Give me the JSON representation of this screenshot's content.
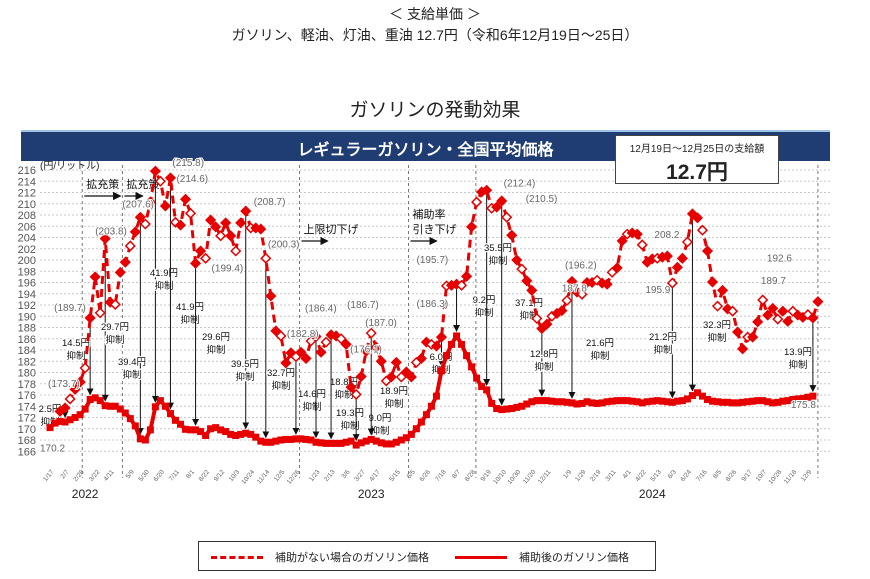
{
  "header": {
    "subtitle": "＜ 支給単価 ＞",
    "rate_line": "ガソリン、軽油、灯油、重油 12.7円（令和6年12月19日～25日）",
    "section_title": "ガソリンの発動効果"
  },
  "chart_data": {
    "type": "line",
    "title": "レギュラーガソリン・全国平均価格",
    "ylabel": "(円/リットル)",
    "ylim": [
      166,
      216
    ],
    "yticks": [
      166,
      168,
      170,
      172,
      174,
      176,
      178,
      180,
      182,
      184,
      186,
      188,
      190,
      192,
      194,
      196,
      198,
      200,
      202,
      204,
      206,
      208,
      210,
      212,
      214,
      216
    ],
    "grid": true,
    "legend_placement": "bottom",
    "colors": {
      "series": "#e60000",
      "banner": "#1f3d73",
      "grid": "#c8c8c8"
    },
    "payment_box": {
      "label": "12月19日～12月25日の支給額",
      "value": "12.7円"
    },
    "xtick_labels": [
      {
        "date": "2022-01-17",
        "label": "1/17"
      },
      {
        "date": "2022-02-07",
        "label": "2/7"
      },
      {
        "date": "2022-02-28",
        "label": "2/28"
      },
      {
        "date": "2022-03-22",
        "label": "3/22"
      },
      {
        "date": "2022-04-11",
        "label": "4/11"
      },
      {
        "date": "2022-05-09",
        "label": "5/9"
      },
      {
        "date": "2022-05-30",
        "label": "5/30"
      },
      {
        "date": "2022-06-20",
        "label": "6/20"
      },
      {
        "date": "2022-07-11",
        "label": "7/11"
      },
      {
        "date": "2022-08-01",
        "label": "8/1"
      },
      {
        "date": "2022-08-22",
        "label": "8/22"
      },
      {
        "date": "2022-09-12",
        "label": "9/12"
      },
      {
        "date": "2022-10-03",
        "label": "10/3"
      },
      {
        "date": "2022-10-24",
        "label": "10/24"
      },
      {
        "date": "2022-11-14",
        "label": "11/14"
      },
      {
        "date": "2022-12-05",
        "label": "12/5"
      },
      {
        "date": "2022-12-26",
        "label": "12/26"
      },
      {
        "date": "2023-01-23",
        "label": "1/23"
      },
      {
        "date": "2023-02-13",
        "label": "2/13"
      },
      {
        "date": "2023-03-06",
        "label": "3/6"
      },
      {
        "date": "2023-03-27",
        "label": "3/27"
      },
      {
        "date": "2023-04-17",
        "label": "4/17"
      },
      {
        "date": "2023-05-15",
        "label": "5/15"
      },
      {
        "date": "2023-06-05",
        "label": "6/5"
      },
      {
        "date": "2023-06-26",
        "label": "6/26"
      },
      {
        "date": "2023-07-18",
        "label": "7/18"
      },
      {
        "date": "2023-08-07",
        "label": "8/7"
      },
      {
        "date": "2023-08-28",
        "label": "8/28"
      },
      {
        "date": "2023-09-19",
        "label": "9/19"
      },
      {
        "date": "2023-10-10",
        "label": "10/10"
      },
      {
        "date": "2023-10-30",
        "label": "10/30"
      },
      {
        "date": "2023-11-20",
        "label": "11/20"
      },
      {
        "date": "2023-12-11",
        "label": "12/11"
      },
      {
        "date": "2024-01-09",
        "label": "1/9"
      },
      {
        "date": "2024-01-29",
        "label": "1/29"
      },
      {
        "date": "2024-02-19",
        "label": "2/19"
      },
      {
        "date": "2024-03-11",
        "label": "3/11"
      },
      {
        "date": "2024-04-01",
        "label": "4/1"
      },
      {
        "date": "2024-04-22",
        "label": "4/22"
      },
      {
        "date": "2024-05-13",
        "label": "5/13"
      },
      {
        "date": "2024-06-03",
        "label": "6/3"
      },
      {
        "date": "2024-06-24",
        "label": "6/24"
      },
      {
        "date": "2024-07-16",
        "label": "7/16"
      },
      {
        "date": "2024-08-05",
        "label": "8/5"
      },
      {
        "date": "2024-08-26",
        "label": "8/26"
      },
      {
        "date": "2024-09-17",
        "label": "9/17"
      },
      {
        "date": "2024-10-07",
        "label": "10/7"
      },
      {
        "date": "2024-10-28",
        "label": "10/28"
      },
      {
        "date": "2024-11-18",
        "label": "11/18"
      },
      {
        "date": "2024-12-09",
        "label": "12/9"
      }
    ],
    "year_labels": [
      {
        "date": "2022-03-07",
        "label": "2022"
      },
      {
        "date": "2023-04-10",
        "label": "2023"
      },
      {
        "date": "2024-05-06",
        "label": "2024"
      }
    ],
    "reference_lines": [
      "2022-03-03",
      "2022-04-28",
      "2022-12-31",
      "2023-06-01",
      "2023-09-03",
      "2024-12-23"
    ],
    "policy_annotations": [
      {
        "lines": [
          "拡充策"
        ],
        "from": "2022-03-03",
        "to": "2022-04-25"
      },
      {
        "lines": [
          "拡充策"
        ],
        "from": "2022-04-28",
        "to": "2022-05-26"
      },
      {
        "lines": [
          "上限切下げ"
        ],
        "from": "2022-12-31",
        "to": "2023-02-08"
      },
      {
        "lines": [
          "補助率",
          "引き下げ"
        ],
        "from": "2023-06-01",
        "to": "2023-07-10"
      }
    ],
    "x_start": "2022-01-17",
    "x_step": "weekly",
    "series": [
      {
        "name": "補助がない場合のガソリン価格",
        "style": "dashed",
        "values": [
          null,
          null,
          173.1,
          173.7,
          175.3,
          177.0,
          178.3,
          180.8,
          189.7,
          197.0,
          190.6,
          203.8,
          192.5,
          192.1,
          197.8,
          199.6,
          202.5,
          205.0,
          207.6,
          206.4,
          210.3,
          215.8,
          214.0,
          209.6,
          214.6,
          206.7,
          206.2,
          210.8,
          208.3,
          199.4,
          201.6,
          200.3,
          207.1,
          205.9,
          204.3,
          206.6,
          204.3,
          201.6,
          206.6,
          208.7,
          205.7,
          205.7,
          205.5,
          200.3,
          193.6,
          187.4,
          186.5,
          181.7,
          183.5,
          182.8,
          183.6,
          182.5,
          185.6,
          186.4,
          183.6,
          185.4,
          186.7,
          186.5,
          186.0,
          185.0,
          177.4,
          176.1,
          179.3,
          183.8,
          187.0,
          184.5,
          182.0,
          178.5,
          179.2,
          181.8,
          179.2,
          180.1,
          179.2,
          181.8,
          182.5,
          185.4,
          185.0,
          184.7,
          186.3,
          195.4,
          195.5,
          195.7,
          195.5,
          197.1,
          205.9,
          210.3,
          212.1,
          212.4,
          209.2,
          209.4,
          210.5,
          207.6,
          204.4,
          200.0,
          198.4,
          196.3,
          194.6,
          189.6,
          187.8,
          188.6,
          190.0,
          190.5,
          191.0,
          192.8,
          196.2,
          194.3,
          193.9,
          196.0,
          196.0,
          196.4,
          195.9,
          195.7,
          197.8,
          198.6,
          203.4,
          204.6,
          204.8,
          204.6,
          202.7,
          199.6,
          200.2,
          200.3,
          200.5,
          200.7,
          195.9,
          198.7,
          200.3,
          203.2,
          208.2,
          207.5,
          205.3,
          201.6,
          196.1,
          191.8,
          194.6,
          191.3,
          190.9,
          187.2,
          184.2,
          186.3,
          186.3,
          189.0,
          192.9,
          190.2,
          191.4,
          189.5,
          190.9,
          189.1,
          190.9,
          190.2,
          189.8,
          190.3,
          189.7,
          192.6
        ]
      },
      {
        "name": "補助後のガソリン価格",
        "style": "solid",
        "values": [
          170.2,
          171.0,
          171.3,
          171.2,
          171.6,
          172.0,
          172.5,
          173.5,
          175.2,
          175.5,
          175.0,
          174.1,
          174.0,
          174.0,
          173.5,
          172.8,
          171.8,
          170.5,
          168.2,
          168.0,
          169.8,
          173.9,
          175.0,
          174.0,
          172.7,
          171.5,
          170.8,
          169.9,
          169.8,
          169.8,
          169.5,
          168.8,
          170.0,
          170.2,
          169.8,
          169.5,
          169.0,
          168.8,
          169.0,
          169.2,
          169.0,
          168.5,
          167.8,
          167.6,
          167.6,
          167.8,
          168.0,
          168.1,
          168.1,
          168.2,
          168.2,
          168.1,
          168.0,
          167.6,
          167.5,
          167.4,
          167.4,
          167.4,
          167.4,
          167.6,
          167.8,
          167.1,
          167.5,
          167.8,
          168.1,
          167.8,
          167.5,
          167.3,
          167.3,
          167.6,
          168.0,
          168.4,
          169.0,
          170.0,
          171.2,
          172.5,
          174.0,
          175.8,
          180.3,
          183.0,
          185.0,
          186.5,
          185.0,
          183.0,
          181.0,
          179.0,
          177.5,
          176.9,
          174.5,
          173.6,
          173.4,
          173.5,
          173.6,
          173.8,
          174.0,
          174.4,
          174.8,
          175.0,
          175.0,
          175.0,
          174.9,
          174.8,
          174.8,
          174.7,
          174.6,
          174.4,
          174.5,
          174.8,
          174.6,
          174.5,
          174.6,
          174.8,
          174.9,
          175.0,
          175.0,
          175.0,
          174.9,
          174.8,
          174.6,
          174.8,
          174.9,
          175.0,
          174.9,
          174.8,
          174.7,
          174.9,
          175.0,
          175.3,
          175.9,
          176.4,
          175.8,
          175.2,
          174.9,
          174.8,
          174.7,
          174.7,
          174.6,
          174.6,
          174.7,
          174.8,
          174.9,
          175.0,
          175.0,
          174.8,
          174.6,
          174.7,
          174.9,
          175.0,
          175.2,
          175.3,
          175.4,
          175.6,
          175.8,
          null
        ]
      }
    ],
    "value_labels": [
      {
        "week": 3,
        "series": 0,
        "text": "(173.7)"
      },
      {
        "week": 8,
        "series": 0,
        "text": "(189.7)"
      },
      {
        "week": 11,
        "series": 0,
        "text": "(203.8)"
      },
      {
        "week": 18,
        "series": 0,
        "text": "(207.6)"
      },
      {
        "week": 21,
        "series": 0,
        "text": "(215.8)"
      },
      {
        "week": 24,
        "series": 0,
        "text": "(214.6)"
      },
      {
        "week": 29,
        "series": 0,
        "text": "(199.4)"
      },
      {
        "week": 39,
        "series": 0,
        "text": "(208.7)"
      },
      {
        "week": 43,
        "series": 0,
        "text": "(200.3)"
      },
      {
        "week": 49,
        "series": 0,
        "text": "(182.8)"
      },
      {
        "week": 53,
        "series": 0,
        "text": "(186.4)"
      },
      {
        "week": 56,
        "series": 0,
        "text": "(186.7)"
      },
      {
        "week": 61,
        "series": 0,
        "text": "(176.1)"
      },
      {
        "week": 64,
        "series": 0,
        "text": "(187.0)"
      },
      {
        "week": 78,
        "series": 0,
        "text": "(186.3)"
      },
      {
        "week": 81,
        "series": 0,
        "text": "(195.7)"
      },
      {
        "week": 87,
        "series": 0,
        "text": "(212.4)"
      },
      {
        "week": 90,
        "series": 0,
        "text": "(210.5)"
      },
      {
        "week": 98,
        "series": 0,
        "text": "187.8"
      },
      {
        "week": 104,
        "series": 0,
        "text": "(196.2)"
      },
      {
        "week": 124,
        "series": 0,
        "text": "195.9"
      },
      {
        "week": 128,
        "series": 0,
        "text": "208.2"
      },
      {
        "week": 152,
        "series": 0,
        "text": "189.7"
      },
      {
        "week": 153,
        "series": 0,
        "text": "192.6"
      },
      {
        "week": 0,
        "series": 1,
        "text": "170.2"
      },
      {
        "week": 152,
        "series": 1,
        "text": "175.8"
      }
    ],
    "suppression_labels": [
      {
        "week": 3,
        "amount": "2.5円",
        "suffix": "抑制"
      },
      {
        "week": 8,
        "amount": "14.5円",
        "suffix": "抑制"
      },
      {
        "week": 11,
        "amount": "29.7円",
        "suffix": "抑制"
      },
      {
        "week": 18,
        "amount": "39.4円",
        "suffix": "抑制"
      },
      {
        "week": 21,
        "amount": "41.9円",
        "suffix": "抑制"
      },
      {
        "week": 24,
        "amount": "41.9円",
        "suffix": "抑制"
      },
      {
        "week": 29,
        "amount": "29.6円",
        "suffix": "抑制"
      },
      {
        "week": 39,
        "amount": "39.5円",
        "suffix": "抑制"
      },
      {
        "week": 43,
        "amount": "32.7円",
        "suffix": "抑制"
      },
      {
        "week": 49,
        "amount": "14.6円",
        "suffix": "抑制"
      },
      {
        "week": 53,
        "amount": "18.8円",
        "suffix": "抑制"
      },
      {
        "week": 56,
        "amount": "19.3円",
        "suffix": "抑制"
      },
      {
        "week": 61,
        "amount": "9.0円",
        "suffix": "抑制"
      },
      {
        "week": 64,
        "amount": "18.9円",
        "suffix": "抑制"
      },
      {
        "week": 78,
        "amount": "6.0円",
        "suffix": "抑制"
      },
      {
        "week": 81,
        "amount": "9.2円",
        "suffix": "抑制"
      },
      {
        "week": 87,
        "amount": "35.5円",
        "suffix": "抑制"
      },
      {
        "week": 90,
        "amount": "37.1円",
        "suffix": "抑制"
      },
      {
        "week": 98,
        "amount": "12.8円",
        "suffix": "抑制"
      },
      {
        "week": 104,
        "amount": "21.6円",
        "suffix": "抑制"
      },
      {
        "week": 124,
        "amount": "21.2円",
        "suffix": "抑制"
      },
      {
        "week": 128,
        "amount": "32.3円",
        "suffix": "抑制"
      },
      {
        "week": 152,
        "amount": "13.9円",
        "suffix": "抑制"
      }
    ]
  },
  "legend": {
    "dashed_label": "補助がない場合のガソリン価格",
    "solid_label": "補助後のガソリン価格"
  }
}
